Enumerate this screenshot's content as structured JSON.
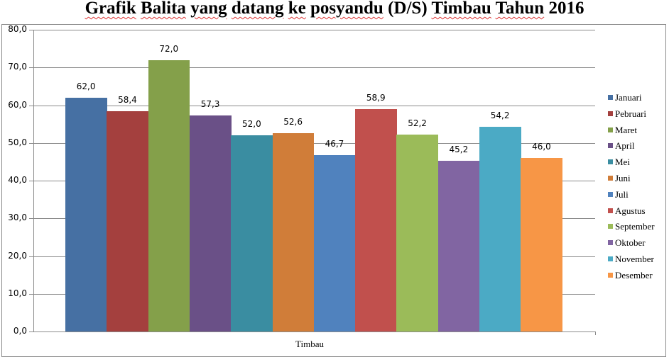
{
  "title_words": [
    "Grafik",
    "Balita",
    "yang",
    "datang",
    "ke",
    "posyandu",
    "(D/S)",
    "Timbau",
    "Tahun",
    "2016"
  ],
  "chart_data": {
    "type": "bar",
    "title": "Grafik Balita yang datang ke posyandu (D/S) Timbau Tahun 2016",
    "xlabel": "",
    "ylabel": "",
    "categories": [
      "Timbau"
    ],
    "ylim": [
      0,
      80
    ],
    "yticks": [
      "0,0",
      "10,0",
      "20,0",
      "30,0",
      "40,0",
      "50,0",
      "60,0",
      "70,0",
      "80,0"
    ],
    "grid": true,
    "legend_position": "right",
    "series": [
      {
        "name": "Januari",
        "values": [
          62.0
        ],
        "label": "62,0",
        "color": "#4670A3"
      },
      {
        "name": "Pebruari",
        "values": [
          58.4
        ],
        "label": "58,4",
        "color": "#A4403E"
      },
      {
        "name": "Maret",
        "values": [
          72.0
        ],
        "label": "72,0",
        "color": "#84A04A"
      },
      {
        "name": "April",
        "values": [
          57.3
        ],
        "label": "57,3",
        "color": "#6A5087"
      },
      {
        "name": "Mei",
        "values": [
          52.0
        ],
        "label": "52,0",
        "color": "#3A8DA1"
      },
      {
        "name": "Juni",
        "values": [
          52.6
        ],
        "label": "52,6",
        "color": "#D07D39"
      },
      {
        "name": "Juli",
        "values": [
          46.7
        ],
        "label": "46,7",
        "color": "#5082BE"
      },
      {
        "name": "Agustus",
        "values": [
          58.9
        ],
        "label": "58,9",
        "color": "#C1504D"
      },
      {
        "name": "September",
        "values": [
          52.2
        ],
        "label": "52,2",
        "color": "#9BBB59"
      },
      {
        "name": "Oktober",
        "values": [
          45.2
        ],
        "label": "45,2",
        "color": "#8165A2"
      },
      {
        "name": "November",
        "values": [
          54.2
        ],
        "label": "54,2",
        "color": "#4BAAC5"
      },
      {
        "name": "Desember",
        "values": [
          46.0
        ],
        "label": "46,0",
        "color": "#F79646"
      }
    ]
  }
}
